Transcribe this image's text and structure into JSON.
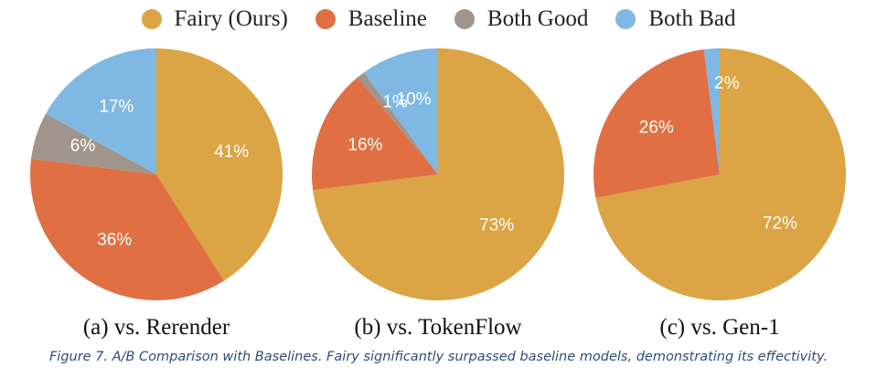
{
  "legend": [
    {
      "label": "Fairy (Ours)",
      "color": "#DBA444"
    },
    {
      "label": "Baseline",
      "color": "#E07044"
    },
    {
      "label": "Both Good",
      "color": "#A0958C"
    },
    {
      "label": "Both Bad",
      "color": "#7FB8E2"
    }
  ],
  "chart_data": [
    {
      "type": "pie",
      "title": "(a) vs. Rerender",
      "slices": [
        {
          "label": "Fairy (Ours)",
          "value": 41,
          "text": "41%",
          "color": "#DBA444"
        },
        {
          "label": "Baseline",
          "value": 36,
          "text": "36%",
          "color": "#E07044"
        },
        {
          "label": "Both Good",
          "value": 6,
          "text": "6%",
          "color": "#A0958C"
        },
        {
          "label": "Both Bad",
          "value": 17,
          "text": "17%",
          "color": "#7FB8E2"
        }
      ]
    },
    {
      "type": "pie",
      "title": "(b) vs. TokenFlow",
      "slices": [
        {
          "label": "Fairy (Ours)",
          "value": 73,
          "text": "73%",
          "color": "#DBA444"
        },
        {
          "label": "Baseline",
          "value": 16,
          "text": "16%",
          "color": "#E07044"
        },
        {
          "label": "Both Good",
          "value": 1,
          "text": "1%",
          "color": "#A0958C"
        },
        {
          "label": "Both Bad",
          "value": 10,
          "text": "10%",
          "color": "#7FB8E2"
        }
      ]
    },
    {
      "type": "pie",
      "title": "(c) vs. Gen-1",
      "slices": [
        {
          "label": "Fairy (Ours)",
          "value": 72,
          "text": "72%",
          "color": "#DBA444"
        },
        {
          "label": "Baseline",
          "value": 26,
          "text": "26%",
          "color": "#E07044"
        },
        {
          "label": "Both Bad",
          "value": 2,
          "text": "2%",
          "color": "#7FB8E2"
        }
      ]
    }
  ],
  "caption": "Figure 7. A/B Comparison with Baselines. Fairy significantly surpassed baseline models, demonstrating its effectivity."
}
